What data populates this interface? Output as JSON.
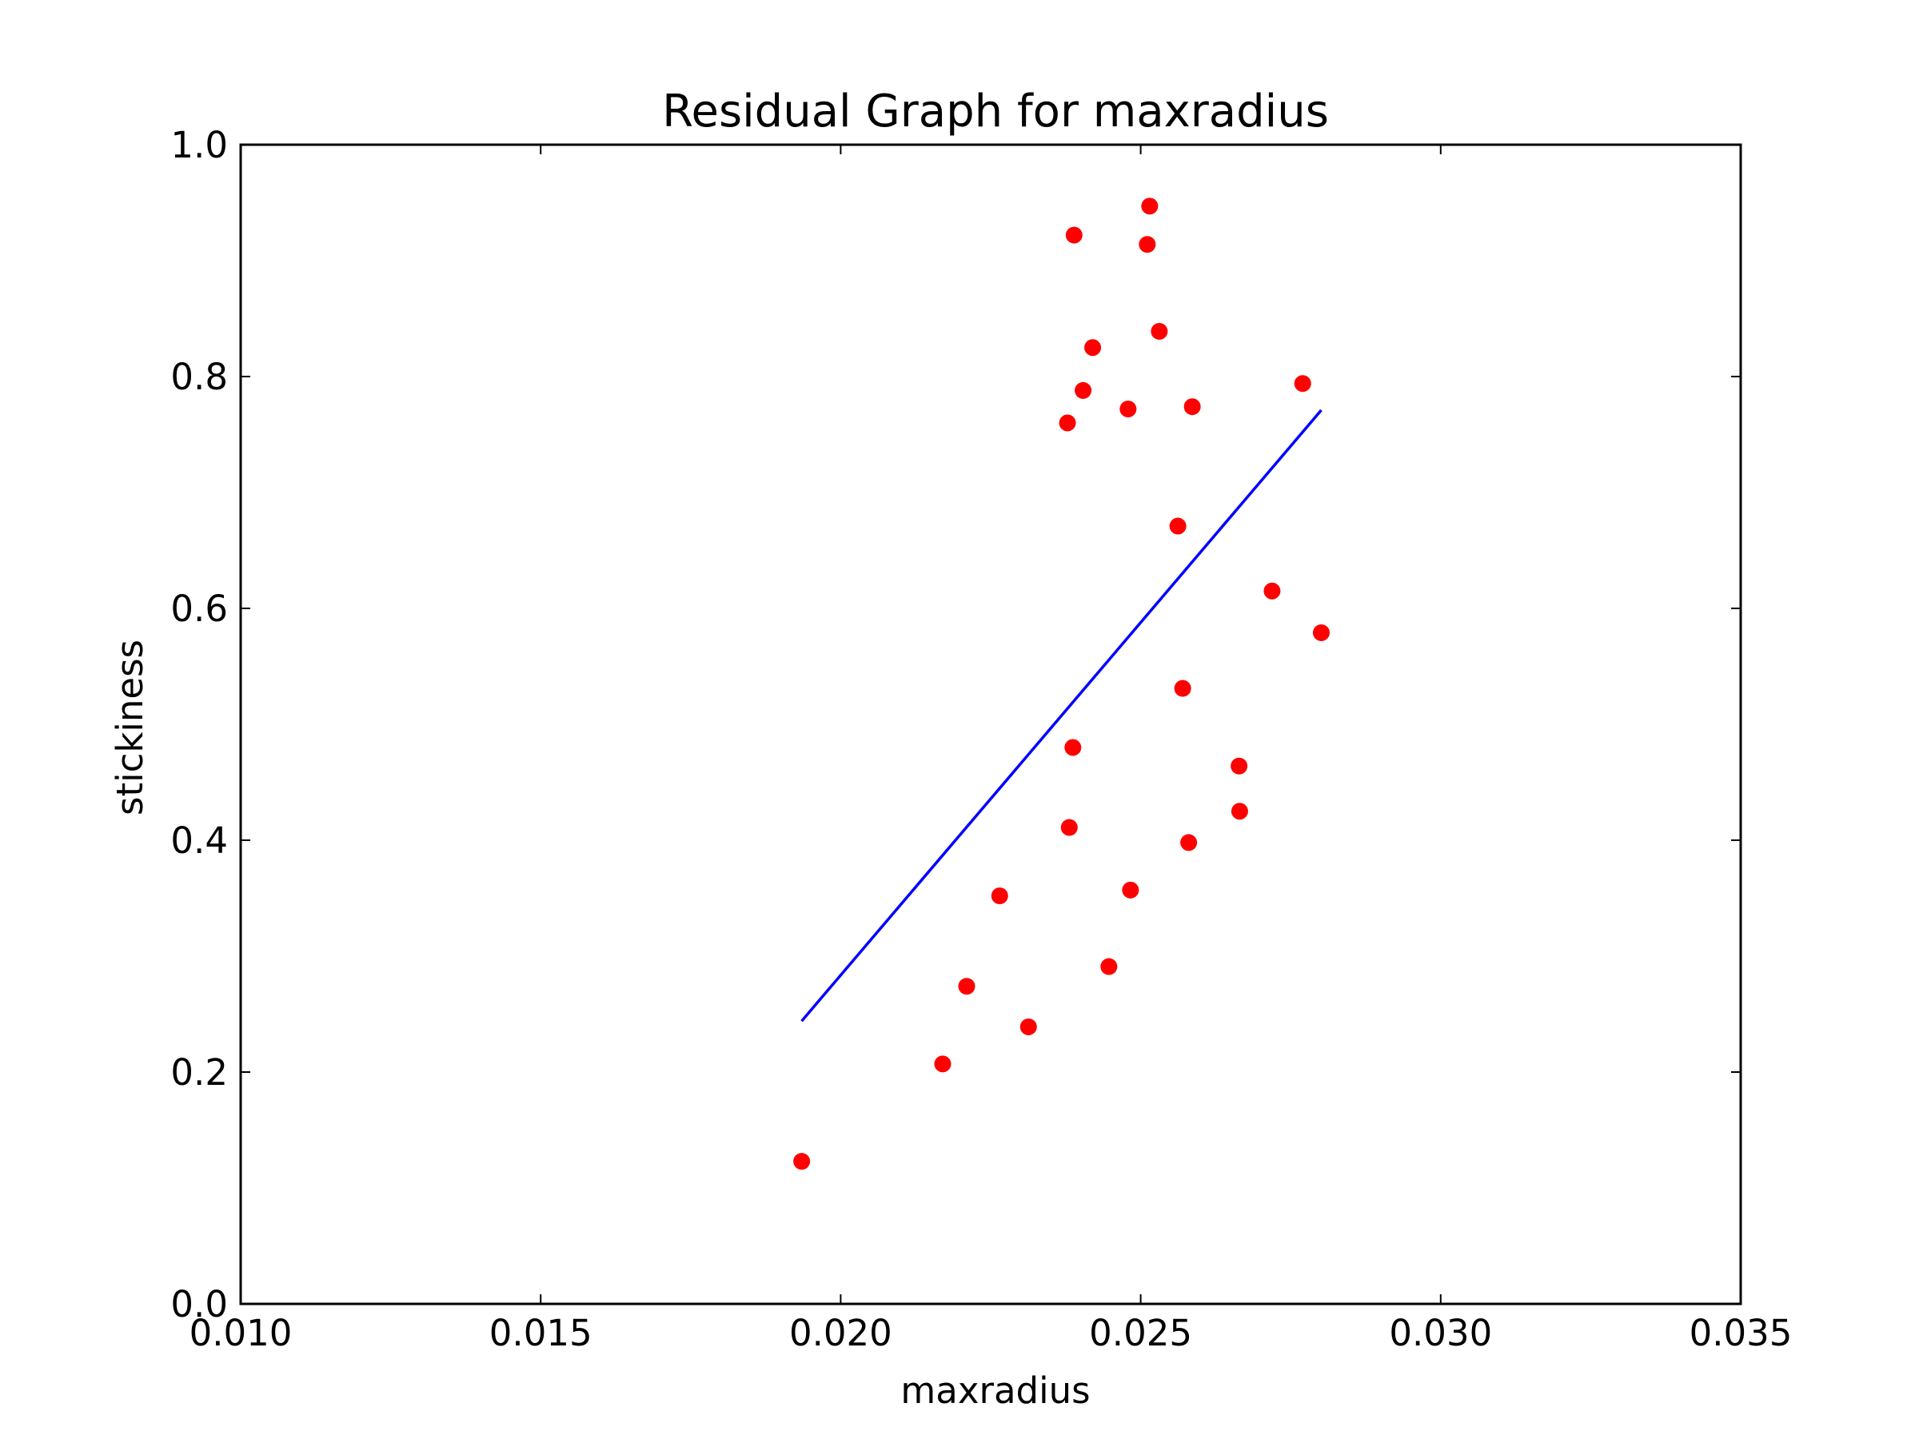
{
  "chart_data": {
    "type": "scatter",
    "title": "Residual Graph for maxradius",
    "xlabel": "maxradius",
    "ylabel": "stickiness",
    "xlim": [
      0.01,
      0.035
    ],
    "ylim": [
      0.0,
      1.0
    ],
    "xticks": [
      "0.010",
      "0.015",
      "0.020",
      "0.025",
      "0.030",
      "0.035"
    ],
    "yticks": [
      "0.0",
      "0.2",
      "0.4",
      "0.6",
      "0.8",
      "1.0"
    ],
    "grid": false,
    "legend": "none",
    "series": [
      {
        "kind": "scatter",
        "color": "#ff0000",
        "points": [
          [
            0.01935,
            0.123
          ],
          [
            0.0217,
            0.207
          ],
          [
            0.0221,
            0.274
          ],
          [
            0.02265,
            0.352
          ],
          [
            0.02313,
            0.239
          ],
          [
            0.02378,
            0.76
          ],
          [
            0.02381,
            0.411
          ],
          [
            0.02387,
            0.48
          ],
          [
            0.02389,
            0.922
          ],
          [
            0.02404,
            0.788
          ],
          [
            0.0242,
            0.825
          ],
          [
            0.02447,
            0.291
          ],
          [
            0.02479,
            0.772
          ],
          [
            0.02483,
            0.357
          ],
          [
            0.02511,
            0.914
          ],
          [
            0.02515,
            0.947
          ],
          [
            0.02531,
            0.839
          ],
          [
            0.02562,
            0.671
          ],
          [
            0.0257,
            0.531
          ],
          [
            0.0258,
            0.398
          ],
          [
            0.02586,
            0.774
          ],
          [
            0.02664,
            0.464
          ],
          [
            0.02665,
            0.425
          ],
          [
            0.02719,
            0.615
          ],
          [
            0.0277,
            0.794
          ],
          [
            0.02801,
            0.579
          ]
        ]
      },
      {
        "kind": "line",
        "color": "#0000ff",
        "points": [
          [
            0.01935,
            0.244
          ],
          [
            0.02801,
            0.771
          ]
        ]
      }
    ]
  }
}
